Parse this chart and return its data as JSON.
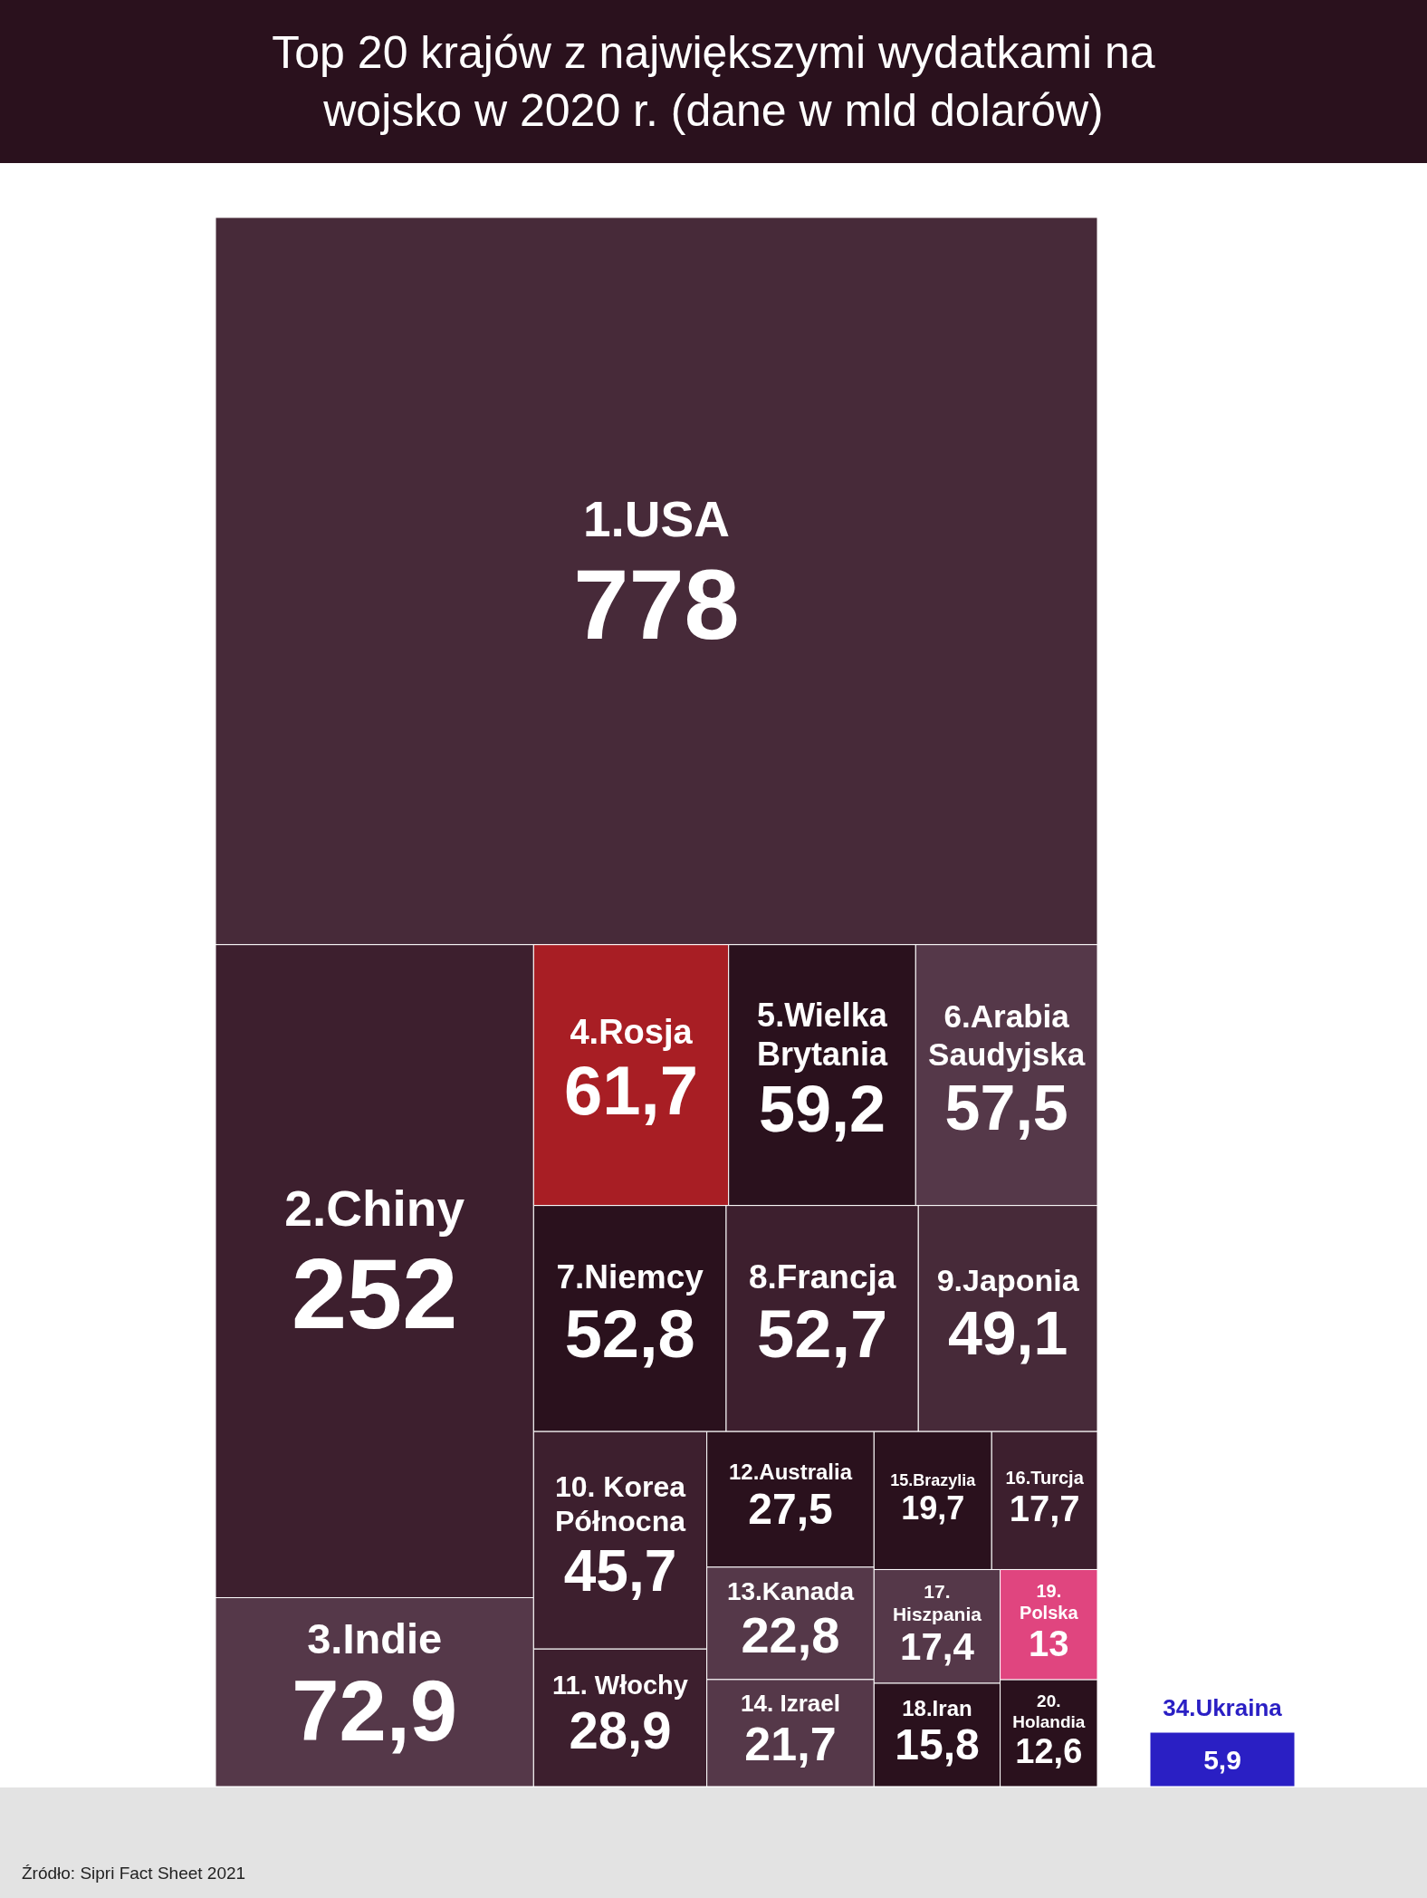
{
  "chart_data": [
    {
      "type": "other",
      "title": "Top 20 krajów z największymi wydatkami na wojsko w 2020 r. (dane w mld dolarów)",
      "annotations": [
        "Źródło: Sipri Fact Sheet 2021"
      ],
      "categories": [
        "1.USA",
        "2.Chiny",
        "3.Indie",
        "4.Rosja",
        "5.Wielka Brytania",
        "6.Arabia Saudyjska",
        "7.Niemcy",
        "8.Francja",
        "9.Japonia",
        "10. Korea Północna",
        "11. Włochy",
        "12.Australia",
        "13.Kanada",
        "14. Izrael",
        "15.Brazylia",
        "16.Turcja",
        "17. Hiszpania",
        "18.Iran",
        "19. Polska",
        "20. Holandia"
      ],
      "values": [
        778,
        252,
        72.9,
        61.7,
        59.2,
        57.5,
        52.8,
        52.7,
        49.1,
        45.7,
        28.9,
        27.5,
        22.8,
        21.7,
        19.7,
        17.7,
        17.4,
        15.8,
        13,
        12.6
      ],
      "value_labels": [
        "778",
        "252",
        "72,9",
        "61,7",
        "59,2",
        "57,5",
        "52,8",
        "52,7",
        "49,1",
        "45,7",
        "28,9",
        "27,5",
        "22,8",
        "21,7",
        "19,7",
        "17,7",
        "17,4",
        "15,8",
        "13",
        "12,6"
      ],
      "colors": [
        "#472a39",
        "#3d1f2e",
        "#553849",
        "#a81e24",
        "#2a111d",
        "#553849",
        "#2a111d",
        "#3d1f2e",
        "#472a39",
        "#3d1f2e",
        "#3d1f2e",
        "#2a111d",
        "#553849",
        "#553849",
        "#2a111d",
        "#3d1f2e",
        "#553849",
        "#2a111d",
        "#e0457f",
        "#2a111d"
      ]
    },
    {
      "type": "other",
      "categories": [
        "34.Ukraina"
      ],
      "values": [
        5.9
      ],
      "value_labels": [
        "5,9"
      ],
      "colors": [
        "#2a1fc4"
      ]
    }
  ]
}
